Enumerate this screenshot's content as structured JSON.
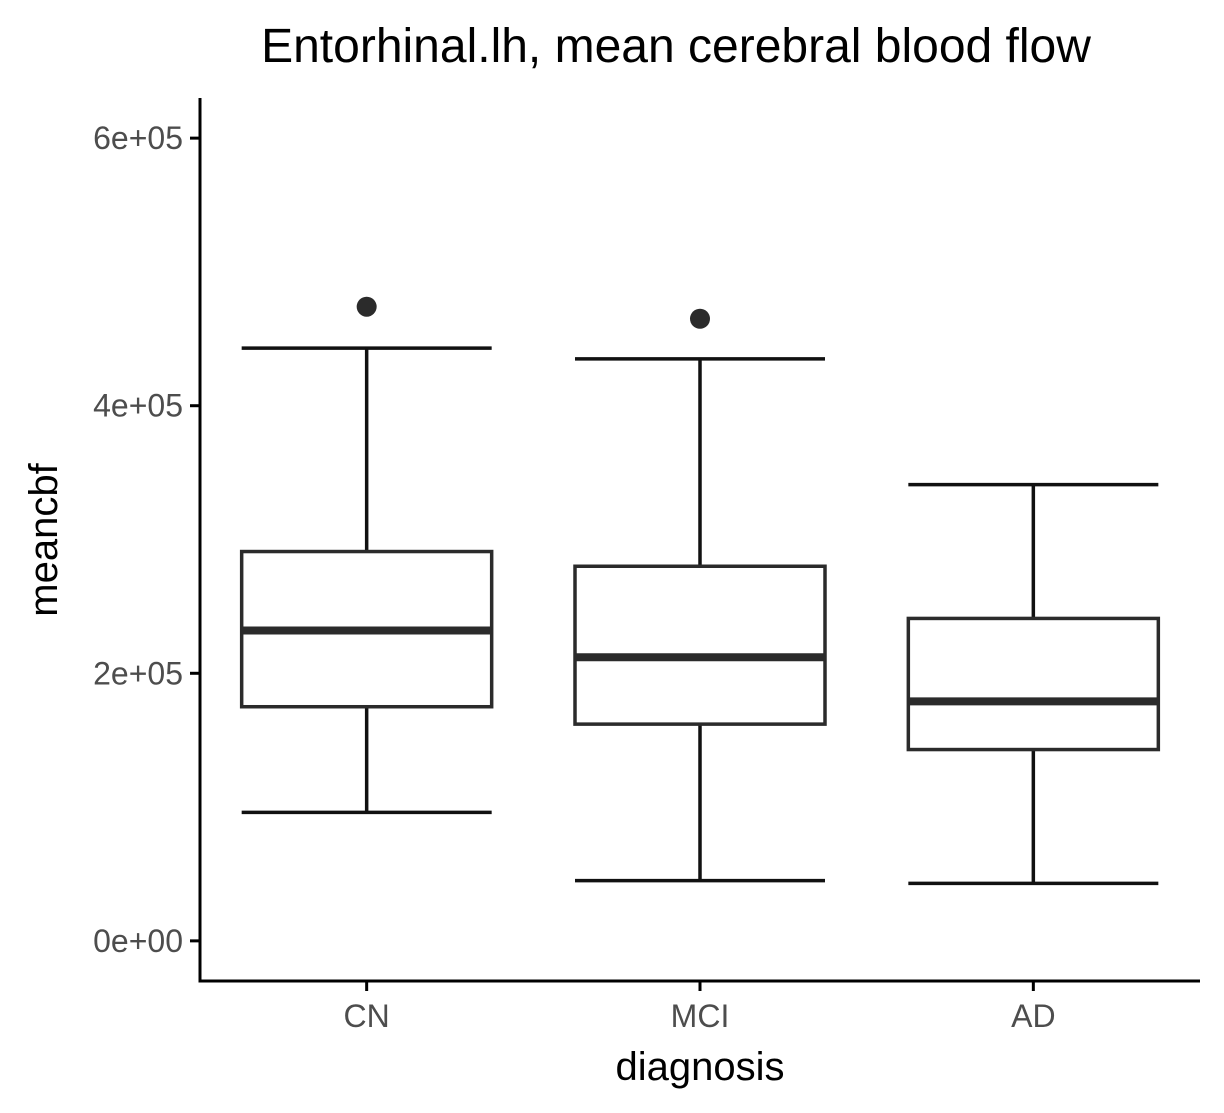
{
  "chart_data": {
    "type": "box",
    "title": "Entorhinal.lh, mean cerebral blood flow",
    "xlabel": "diagnosis",
    "ylabel": "meancbf",
    "categories": [
      "CN",
      "MCI",
      "AD"
    ],
    "ylim": [
      -30000,
      630000
    ],
    "yticks": [
      0,
      200000,
      400000,
      600000
    ],
    "ytick_labels": [
      "0e+00",
      "2e+05",
      "4e+05",
      "6e+05"
    ],
    "boxes": [
      {
        "category": "CN",
        "whisker_low": 96000,
        "q1": 175000,
        "median": 232000,
        "q3": 291000,
        "whisker_high": 443000,
        "outliers": [
          474000
        ]
      },
      {
        "category": "MCI",
        "whisker_low": 45000,
        "q1": 162000,
        "median": 212000,
        "q3": 280000,
        "whisker_high": 435000,
        "outliers": [
          465000
        ]
      },
      {
        "category": "AD",
        "whisker_low": 43000,
        "q1": 143000,
        "median": 179000,
        "q3": 241000,
        "whisker_high": 341000,
        "outliers": []
      }
    ],
    "grid": false,
    "legend": "none"
  }
}
